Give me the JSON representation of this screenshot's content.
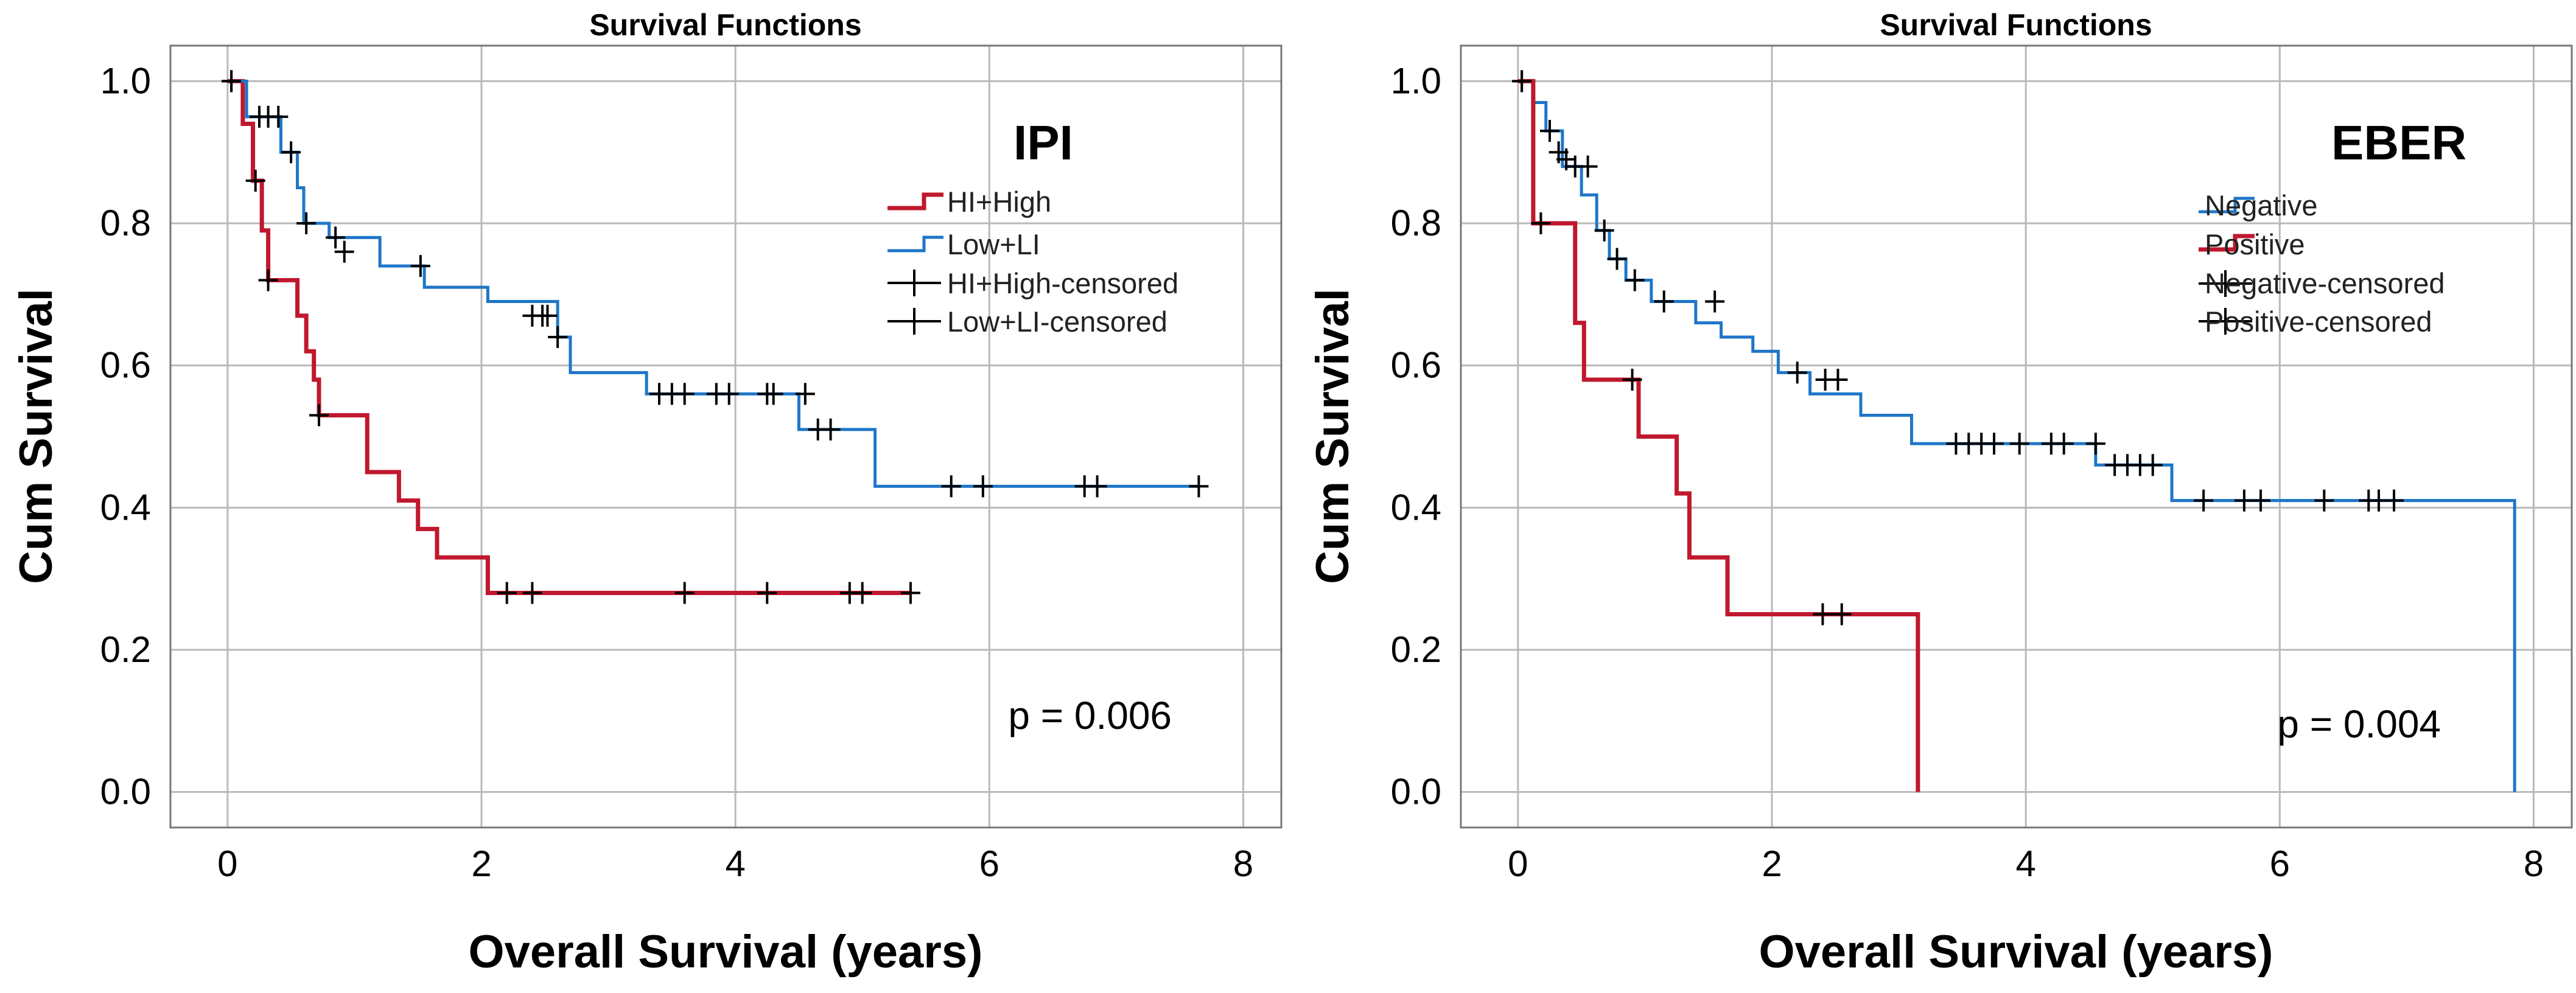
{
  "colors": {
    "high": "#c0182e",
    "low": "#1f76c8",
    "censor": "#000000",
    "grid": "#b9b9b9"
  },
  "chart_data": [
    {
      "type": "line",
      "subtype": "kaplan-meier",
      "title": "Survival Functions",
      "xlabel": "Overall Survival (years)",
      "ylabel": "Cum Survival",
      "xlim": [
        -0.45,
        8.3
      ],
      "ylim": [
        -0.05,
        1.05
      ],
      "xticks": [
        "0",
        "2",
        "4",
        "6",
        "8"
      ],
      "yticks": [
        "0.0",
        "0.2",
        "0.4",
        "0.6",
        "0.8",
        "1.0"
      ],
      "xtick_values": [
        0,
        2,
        4,
        6,
        8
      ],
      "ytick_values": [
        0,
        0.2,
        0.4,
        0.6,
        0.8,
        1.0
      ],
      "grid": true,
      "legend_title": "IPI",
      "legend_position": "top-right",
      "legend": [
        "HI+High",
        "Low+LI",
        "HI+High-censored",
        "Low+LI-censored"
      ],
      "annotation": "p = 0.006",
      "series": [
        {
          "name": "HI+High",
          "color": "#c0182e",
          "x": [
            0,
            0.12,
            0.2,
            0.27,
            0.32,
            0.55,
            0.62,
            0.68,
            0.72,
            1.1,
            1.35,
            1.5,
            1.65,
            2.05,
            5.38
          ],
          "y": [
            1.0,
            0.94,
            0.86,
            0.79,
            0.72,
            0.67,
            0.62,
            0.58,
            0.53,
            0.45,
            0.41,
            0.37,
            0.33,
            0.28,
            0.28
          ],
          "censored_x": [
            0.03,
            0.22,
            0.32,
            0.72,
            2.2,
            2.4,
            3.6,
            4.25,
            4.9,
            5.0,
            5.38
          ],
          "censored_y": [
            1.0,
            0.86,
            0.72,
            0.53,
            0.28,
            0.28,
            0.28,
            0.28,
            0.28,
            0.28,
            0.28
          ]
        },
        {
          "name": "Low+LI",
          "color": "#1f76c8",
          "x": [
            0,
            0.15,
            0.42,
            0.55,
            0.6,
            0.8,
            1.2,
            1.55,
            2.05,
            2.6,
            2.7,
            3.3,
            4.5,
            5.1,
            7.65
          ],
          "y": [
            1.0,
            0.95,
            0.9,
            0.85,
            0.8,
            0.78,
            0.74,
            0.71,
            0.69,
            0.64,
            0.59,
            0.56,
            0.51,
            0.43,
            0.43
          ],
          "censored_x": [
            0.03,
            0.25,
            0.32,
            0.4,
            0.5,
            0.62,
            0.85,
            0.92,
            1.52,
            2.4,
            2.48,
            2.52,
            2.6,
            3.4,
            3.5,
            3.6,
            3.85,
            3.95,
            4.25,
            4.3,
            4.55,
            4.65,
            4.75,
            5.7,
            5.95,
            6.75,
            6.85,
            7.65
          ],
          "censored_y": [
            1.0,
            0.95,
            0.95,
            0.95,
            0.9,
            0.8,
            0.78,
            0.76,
            0.74,
            0.67,
            0.67,
            0.67,
            0.64,
            0.56,
            0.56,
            0.56,
            0.56,
            0.56,
            0.56,
            0.56,
            0.56,
            0.51,
            0.51,
            0.43,
            0.43,
            0.43,
            0.43,
            0.43
          ]
        }
      ]
    },
    {
      "type": "line",
      "subtype": "kaplan-meier",
      "title": "Survival Functions",
      "xlabel": "Overall Survival (years)",
      "ylabel": "Cum Survival",
      "xlim": [
        -0.45,
        8.3
      ],
      "ylim": [
        -0.05,
        1.05
      ],
      "xticks": [
        "0",
        "2",
        "4",
        "6",
        "8"
      ],
      "yticks": [
        "0.0",
        "0.2",
        "0.4",
        "0.6",
        "0.8",
        "1.0"
      ],
      "xtick_values": [
        0,
        2,
        4,
        6,
        8
      ],
      "ytick_values": [
        0,
        0.2,
        0.4,
        0.6,
        0.8,
        1.0
      ],
      "grid": true,
      "legend_title": "EBER",
      "legend_position": "top-right",
      "legend": [
        "Negative",
        "Positive",
        "Negative-censored",
        "Positive-censored"
      ],
      "annotation": "p = 0.004",
      "series": [
        {
          "name": "Negative",
          "color": "#1f76c8",
          "x": [
            0,
            0.12,
            0.22,
            0.35,
            0.5,
            0.62,
            0.72,
            0.85,
            1.05,
            1.4,
            1.6,
            1.85,
            2.05,
            2.3,
            2.7,
            3.1,
            4.2,
            4.55,
            5.15,
            7.85,
            7.85
          ],
          "y": [
            1.0,
            0.97,
            0.93,
            0.88,
            0.84,
            0.79,
            0.75,
            0.72,
            0.69,
            0.66,
            0.64,
            0.62,
            0.59,
            0.56,
            0.53,
            0.49,
            0.49,
            0.46,
            0.41,
            0.41,
            0.0
          ],
          "censored_x": [
            0.03,
            0.25,
            0.32,
            0.38,
            0.45,
            0.55,
            0.68,
            0.78,
            0.92,
            1.15,
            1.55,
            2.2,
            2.42,
            2.52,
            3.45,
            3.55,
            3.65,
            3.75,
            3.95,
            4.2,
            4.3,
            4.55,
            4.7,
            4.8,
            4.9,
            5.0,
            5.4,
            5.72,
            5.85,
            6.35,
            6.7,
            6.78,
            6.9
          ],
          "censored_y": [
            1.0,
            0.93,
            0.9,
            0.89,
            0.88,
            0.88,
            0.79,
            0.75,
            0.72,
            0.69,
            0.69,
            0.59,
            0.58,
            0.58,
            0.49,
            0.49,
            0.49,
            0.49,
            0.49,
            0.49,
            0.49,
            0.49,
            0.46,
            0.46,
            0.46,
            0.46,
            0.41,
            0.41,
            0.41,
            0.41,
            0.41,
            0.41,
            0.41
          ]
        },
        {
          "name": "Positive",
          "color": "#c0182e",
          "x": [
            0,
            0.12,
            0.45,
            0.52,
            0.95,
            1.25,
            1.35,
            1.65,
            3.15,
            3.15
          ],
          "y": [
            1.0,
            0.8,
            0.66,
            0.58,
            0.5,
            0.42,
            0.33,
            0.25,
            0.25,
            0.0
          ],
          "censored_x": [
            0.03,
            0.18,
            0.9,
            2.4,
            2.55
          ],
          "censored_y": [
            1.0,
            0.8,
            0.58,
            0.25,
            0.25
          ]
        }
      ]
    }
  ]
}
